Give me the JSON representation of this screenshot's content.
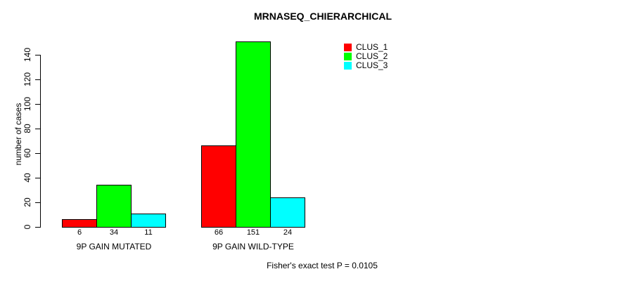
{
  "chart_data": {
    "type": "bar",
    "title": "MRNASEQ_CHIERARCHICAL",
    "xlabel": "",
    "ylabel": "number of cases",
    "categories": [
      "9P GAIN MUTATED",
      "9P GAIN WILD-TYPE"
    ],
    "series": [
      {
        "name": "CLUS_1",
        "color": "#FF0000",
        "values": [
          6,
          66
        ]
      },
      {
        "name": "CLUS_2",
        "color": "#00FF00",
        "values": [
          34,
          151
        ]
      },
      {
        "name": "CLUS_3",
        "color": "#00FFFF",
        "values": [
          11,
          24
        ]
      }
    ],
    "yticks": [
      0,
      20,
      40,
      60,
      80,
      100,
      120,
      140
    ],
    "ylim": [
      0,
      151
    ],
    "grid": false,
    "legend": {
      "position": "top-right",
      "items": [
        {
          "label": "CLUS_1",
          "color": "#FF0000"
        },
        {
          "label": "CLUS_2",
          "color": "#00FF00"
        },
        {
          "label": "CLUS_3",
          "color": "#00FFFF"
        }
      ]
    },
    "annotation": "Fisher's exact test P = 0.0105",
    "axis_color": "#000000",
    "bar_border_color": "#000000"
  }
}
